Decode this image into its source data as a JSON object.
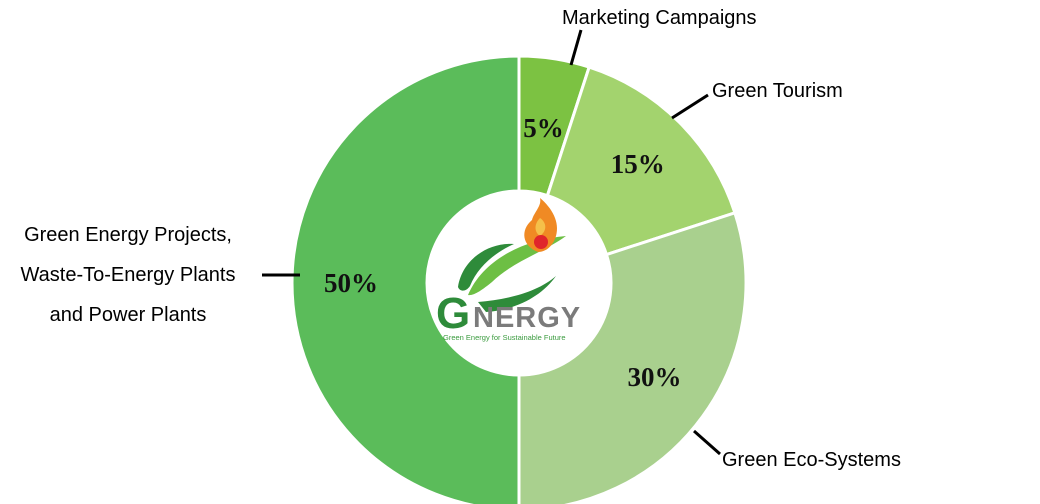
{
  "chart_data": {
    "type": "pie",
    "variant": "donut",
    "categories": [
      "Marketing Campaigns",
      "Green Tourism",
      "Green Eco-Systems",
      "Green Energy Projects, Waste-To-Energy Plants and Power Plants"
    ],
    "category_lines": [
      [
        "Marketing Campaigns"
      ],
      [
        "Green Tourism"
      ],
      [
        "Green Eco-Systems"
      ],
      [
        "Green Energy Projects,",
        "Waste-To-Energy Plants",
        "and Power Plants"
      ]
    ],
    "values": [
      5,
      15,
      30,
      50
    ],
    "value_labels": [
      "5%",
      "15%",
      "30%",
      "50%"
    ],
    "colors": [
      "#7cc242",
      "#a3d36e",
      "#a9d08e",
      "#5bbc5a"
    ],
    "start_angle_deg": 0,
    "direction": "clockwise",
    "legend": "none"
  },
  "logo": {
    "wordmark_initial": "G",
    "wordmark_rest": "NERGY",
    "tagline": "Green Energy for Sustainable Future",
    "colors": {
      "green_dark": "#2e8b3a",
      "green_light": "#6dbf44",
      "gray": "#7b7b7b",
      "flame_orange": "#f08a24",
      "flame_yellow": "#f5c04a",
      "dot_red": "#e0252b",
      "tagline_green": "#3a9b3e"
    }
  }
}
